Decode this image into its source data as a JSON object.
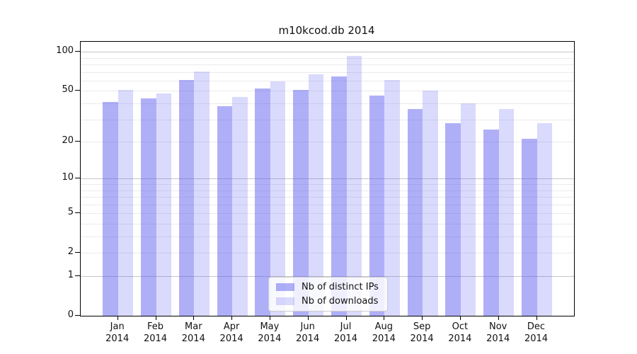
{
  "chart_data": {
    "type": "bar",
    "title": "m10kcod.db 2014",
    "categories": [
      "Jan 2014",
      "Feb 2014",
      "Mar 2014",
      "Apr 2014",
      "May 2014",
      "Jun 2014",
      "Jul 2014",
      "Aug 2014",
      "Sep 2014",
      "Oct 2014",
      "Nov 2014",
      "Dec 2014"
    ],
    "series": [
      {
        "name": "Nb of distinct IPs",
        "values": [
          41,
          44,
          61,
          38,
          52,
          51,
          65,
          46,
          36,
          28,
          25,
          21
        ],
        "color": "rgba(85,85,240,0.47)"
      },
      {
        "name": "Nb of downloads",
        "values": [
          51,
          48,
          71,
          45,
          59,
          67,
          93,
          61,
          50,
          40,
          36,
          28
        ],
        "color": "rgba(85,85,240,0.22)"
      }
    ],
    "xlabel": "",
    "ylabel": "",
    "y_scale": "log10(value+1)",
    "y_tick_values": [
      0,
      1,
      2,
      5,
      10,
      20,
      50,
      100
    ],
    "y_major_gridline_values": [
      1,
      10,
      100
    ],
    "y_minor_gridline_values": [
      3,
      4,
      6,
      7,
      8,
      9,
      30,
      40,
      60,
      70,
      80,
      90
    ],
    "ylim": [
      0,
      120
    ],
    "grid": true,
    "legend_position": "lower center"
  },
  "colors": {
    "bar_ips": "rgba(85,85,240,0.47)",
    "bar_downloads": "rgba(85,85,240,0.22)",
    "grid_major": "#c6c6c6",
    "grid_minor": "#ebebeb",
    "axis": "#000000",
    "legend_border": "#cccccc",
    "legend_background": "rgba(255,255,255,0.8)"
  }
}
